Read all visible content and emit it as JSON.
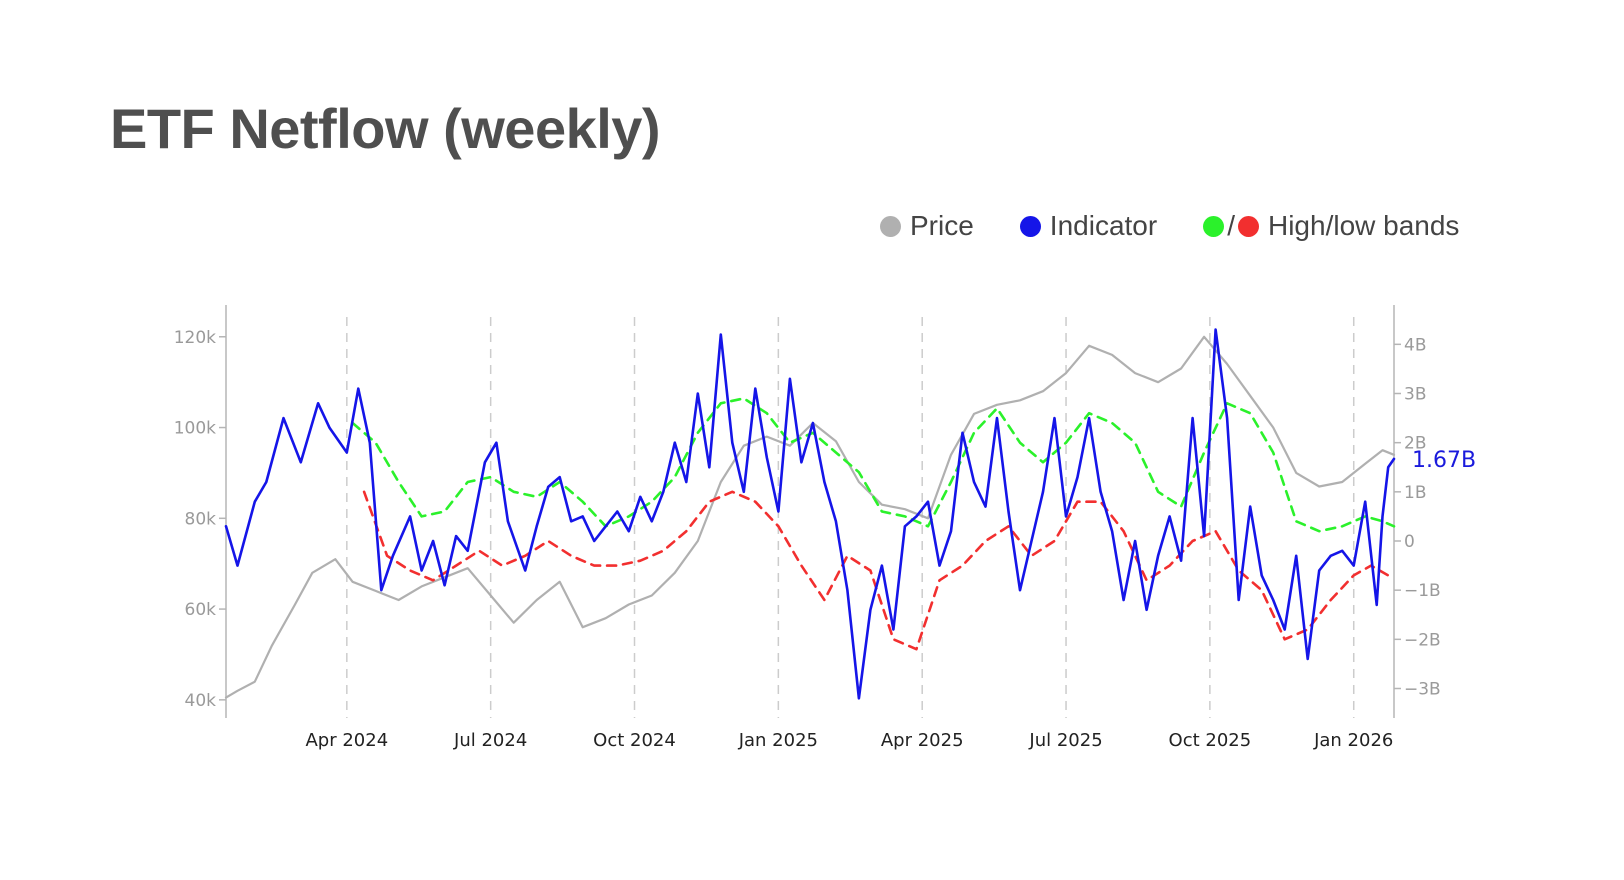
{
  "title": "ETF Netflow (weekly)",
  "legend": {
    "price": {
      "label": "Price",
      "color": "#b0b0b0"
    },
    "indicator": {
      "label": "Indicator",
      "color": "#1515e8"
    },
    "bands": {
      "label": "High/low bands",
      "separator": "/",
      "high_color": "#2bf12b",
      "low_color": "#f22f2f"
    }
  },
  "chart_data": {
    "type": "line",
    "title": "ETF Netflow (weekly)",
    "x_range": [
      2024.04,
      2026.07
    ],
    "x_ticks": [
      {
        "label": "Apr 2024",
        "x": 2024.25
      },
      {
        "label": "Jul 2024",
        "x": 2024.5
      },
      {
        "label": "Oct 2024",
        "x": 2024.75
      },
      {
        "label": "Jan 2025",
        "x": 2025.0
      },
      {
        "label": "Apr 2025",
        "x": 2025.25
      },
      {
        "label": "Jul 2025",
        "x": 2025.5
      },
      {
        "label": "Oct 2025",
        "x": 2025.75
      },
      {
        "label": "Jan 2026",
        "x": 2026.0
      }
    ],
    "y_left": {
      "label": "Price",
      "range": [
        36000,
        127000
      ],
      "ticks": [
        {
          "v": 40000,
          "label": "40k"
        },
        {
          "v": 60000,
          "label": "60k"
        },
        {
          "v": 80000,
          "label": "80k"
        },
        {
          "v": 100000,
          "label": "100k"
        },
        {
          "v": 120000,
          "label": "120k"
        }
      ]
    },
    "y_right": {
      "label": "Indicator",
      "range": [
        -3.6,
        4.8
      ],
      "ticks": [
        {
          "v": -3,
          "label": "−3B"
        },
        {
          "v": -2,
          "label": "−2B"
        },
        {
          "v": -1,
          "label": "−1B"
        },
        {
          "v": 0,
          "label": "0"
        },
        {
          "v": 1,
          "label": "1B"
        },
        {
          "v": 2,
          "label": "2B"
        },
        {
          "v": 3,
          "label": "3B"
        },
        {
          "v": 4,
          "label": "4B"
        }
      ]
    },
    "last_value_label": "1.67B",
    "last_value": 1.67,
    "series": [
      {
        "name": "Price",
        "axis": "left",
        "color": "#b0b0b0",
        "points": [
          [
            2024.04,
            40500
          ],
          [
            2024.06,
            42000
          ],
          [
            2024.09,
            44000
          ],
          [
            2024.12,
            52000
          ],
          [
            2024.16,
            61000
          ],
          [
            2024.19,
            68000
          ],
          [
            2024.23,
            71000
          ],
          [
            2024.26,
            66000
          ],
          [
            2024.3,
            64000
          ],
          [
            2024.34,
            62000
          ],
          [
            2024.38,
            65000
          ],
          [
            2024.42,
            67000
          ],
          [
            2024.46,
            69000
          ],
          [
            2024.5,
            63000
          ],
          [
            2024.54,
            57000
          ],
          [
            2024.58,
            62000
          ],
          [
            2024.62,
            66000
          ],
          [
            2024.66,
            56000
          ],
          [
            2024.7,
            58000
          ],
          [
            2024.74,
            61000
          ],
          [
            2024.78,
            63000
          ],
          [
            2024.82,
            68000
          ],
          [
            2024.86,
            75000
          ],
          [
            2024.9,
            88000
          ],
          [
            2024.94,
            96000
          ],
          [
            2024.98,
            98000
          ],
          [
            2025.02,
            96000
          ],
          [
            2025.06,
            101000
          ],
          [
            2025.1,
            97000
          ],
          [
            2025.14,
            88000
          ],
          [
            2025.18,
            83000
          ],
          [
            2025.22,
            82000
          ],
          [
            2025.26,
            80000
          ],
          [
            2025.3,
            94000
          ],
          [
            2025.34,
            103000
          ],
          [
            2025.38,
            105000
          ],
          [
            2025.42,
            106000
          ],
          [
            2025.46,
            108000
          ],
          [
            2025.5,
            112000
          ],
          [
            2025.54,
            118000
          ],
          [
            2025.58,
            116000
          ],
          [
            2025.62,
            112000
          ],
          [
            2025.66,
            110000
          ],
          [
            2025.7,
            113000
          ],
          [
            2025.74,
            120000
          ],
          [
            2025.78,
            114000
          ],
          [
            2025.82,
            107000
          ],
          [
            2025.86,
            100000
          ],
          [
            2025.9,
            90000
          ],
          [
            2025.94,
            87000
          ],
          [
            2025.98,
            88000
          ],
          [
            2026.02,
            92000
          ],
          [
            2026.05,
            95000
          ],
          [
            2026.07,
            94000
          ]
        ]
      },
      {
        "name": "Indicator",
        "axis": "right",
        "color": "#1515e8",
        "points": [
          [
            2024.04,
            0.3
          ],
          [
            2024.06,
            -0.5
          ],
          [
            2024.09,
            0.8
          ],
          [
            2024.11,
            1.2
          ],
          [
            2024.14,
            2.5
          ],
          [
            2024.17,
            1.6
          ],
          [
            2024.2,
            2.8
          ],
          [
            2024.22,
            2.3
          ],
          [
            2024.25,
            1.8
          ],
          [
            2024.27,
            3.1
          ],
          [
            2024.29,
            2.0
          ],
          [
            2024.31,
            -1.0
          ],
          [
            2024.33,
            -0.3
          ],
          [
            2024.36,
            0.5
          ],
          [
            2024.38,
            -0.6
          ],
          [
            2024.4,
            0.0
          ],
          [
            2024.42,
            -0.9
          ],
          [
            2024.44,
            0.1
          ],
          [
            2024.46,
            -0.2
          ],
          [
            2024.49,
            1.6
          ],
          [
            2024.51,
            2.0
          ],
          [
            2024.53,
            0.4
          ],
          [
            2024.56,
            -0.6
          ],
          [
            2024.58,
            0.3
          ],
          [
            2024.6,
            1.1
          ],
          [
            2024.62,
            1.3
          ],
          [
            2024.64,
            0.4
          ],
          [
            2024.66,
            0.5
          ],
          [
            2024.68,
            0.0
          ],
          [
            2024.7,
            0.3
          ],
          [
            2024.72,
            0.6
          ],
          [
            2024.74,
            0.2
          ],
          [
            2024.76,
            0.9
          ],
          [
            2024.78,
            0.4
          ],
          [
            2024.8,
            1.0
          ],
          [
            2024.82,
            2.0
          ],
          [
            2024.84,
            1.2
          ],
          [
            2024.86,
            3.0
          ],
          [
            2024.88,
            1.5
          ],
          [
            2024.9,
            4.2
          ],
          [
            2024.92,
            2.0
          ],
          [
            2024.94,
            1.0
          ],
          [
            2024.96,
            3.1
          ],
          [
            2024.98,
            1.7
          ],
          [
            2025.0,
            0.6
          ],
          [
            2025.02,
            3.3
          ],
          [
            2025.04,
            1.6
          ],
          [
            2025.06,
            2.4
          ],
          [
            2025.08,
            1.2
          ],
          [
            2025.1,
            0.4
          ],
          [
            2025.12,
            -1.0
          ],
          [
            2025.14,
            -3.2
          ],
          [
            2025.16,
            -1.4
          ],
          [
            2025.18,
            -0.5
          ],
          [
            2025.2,
            -1.8
          ],
          [
            2025.22,
            0.3
          ],
          [
            2025.24,
            0.5
          ],
          [
            2025.26,
            0.8
          ],
          [
            2025.28,
            -0.5
          ],
          [
            2025.3,
            0.2
          ],
          [
            2025.32,
            2.2
          ],
          [
            2025.34,
            1.2
          ],
          [
            2025.36,
            0.7
          ],
          [
            2025.38,
            2.5
          ],
          [
            2025.4,
            0.6
          ],
          [
            2025.42,
            -1.0
          ],
          [
            2025.44,
            0.0
          ],
          [
            2025.46,
            1.0
          ],
          [
            2025.48,
            2.5
          ],
          [
            2025.5,
            0.5
          ],
          [
            2025.52,
            1.3
          ],
          [
            2025.54,
            2.5
          ],
          [
            2025.56,
            1.0
          ],
          [
            2025.58,
            0.2
          ],
          [
            2025.6,
            -1.2
          ],
          [
            2025.62,
            0.0
          ],
          [
            2025.64,
            -1.4
          ],
          [
            2025.66,
            -0.3
          ],
          [
            2025.68,
            0.5
          ],
          [
            2025.7,
            -0.4
          ],
          [
            2025.72,
            2.5
          ],
          [
            2025.74,
            0.1
          ],
          [
            2025.76,
            4.3
          ],
          [
            2025.78,
            2.5
          ],
          [
            2025.8,
            -1.2
          ],
          [
            2025.82,
            0.7
          ],
          [
            2025.84,
            -0.7
          ],
          [
            2025.86,
            -1.2
          ],
          [
            2025.88,
            -1.8
          ],
          [
            2025.9,
            -0.3
          ],
          [
            2025.92,
            -2.4
          ],
          [
            2025.94,
            -0.6
          ],
          [
            2025.96,
            -0.3
          ],
          [
            2025.98,
            -0.2
          ],
          [
            2026.0,
            -0.5
          ],
          [
            2026.02,
            0.8
          ],
          [
            2026.04,
            -1.3
          ],
          [
            2026.05,
            0.5
          ],
          [
            2026.06,
            1.5
          ],
          [
            2026.07,
            1.67
          ]
        ]
      },
      {
        "name": "High band",
        "axis": "right",
        "color": "#2bf12b",
        "style": "dashed",
        "points": [
          [
            2024.26,
            2.4
          ],
          [
            2024.3,
            2.0
          ],
          [
            2024.34,
            1.2
          ],
          [
            2024.38,
            0.5
          ],
          [
            2024.42,
            0.6
          ],
          [
            2024.46,
            1.2
          ],
          [
            2024.5,
            1.3
          ],
          [
            2024.54,
            1.0
          ],
          [
            2024.58,
            0.9
          ],
          [
            2024.62,
            1.2
          ],
          [
            2024.66,
            0.8
          ],
          [
            2024.7,
            0.3
          ],
          [
            2024.74,
            0.5
          ],
          [
            2024.78,
            0.8
          ],
          [
            2024.82,
            1.3
          ],
          [
            2024.86,
            2.2
          ],
          [
            2024.9,
            2.8
          ],
          [
            2024.94,
            2.9
          ],
          [
            2024.98,
            2.6
          ],
          [
            2025.02,
            2.0
          ],
          [
            2025.06,
            2.2
          ],
          [
            2025.1,
            1.8
          ],
          [
            2025.14,
            1.4
          ],
          [
            2025.18,
            0.6
          ],
          [
            2025.22,
            0.5
          ],
          [
            2025.26,
            0.3
          ],
          [
            2025.3,
            1.2
          ],
          [
            2025.34,
            2.2
          ],
          [
            2025.38,
            2.7
          ],
          [
            2025.42,
            2.0
          ],
          [
            2025.46,
            1.6
          ],
          [
            2025.5,
            2.0
          ],
          [
            2025.54,
            2.6
          ],
          [
            2025.58,
            2.4
          ],
          [
            2025.62,
            2.0
          ],
          [
            2025.66,
            1.0
          ],
          [
            2025.7,
            0.7
          ],
          [
            2025.74,
            1.8
          ],
          [
            2025.78,
            2.8
          ],
          [
            2025.82,
            2.6
          ],
          [
            2025.86,
            1.8
          ],
          [
            2025.9,
            0.4
          ],
          [
            2025.94,
            0.2
          ],
          [
            2025.98,
            0.3
          ],
          [
            2026.02,
            0.5
          ],
          [
            2026.05,
            0.4
          ],
          [
            2026.07,
            0.3
          ]
        ]
      },
      {
        "name": "Low band",
        "axis": "right",
        "color": "#f22f2f",
        "style": "dashed",
        "points": [
          [
            2024.28,
            1.0
          ],
          [
            2024.32,
            -0.3
          ],
          [
            2024.36,
            -0.6
          ],
          [
            2024.4,
            -0.8
          ],
          [
            2024.44,
            -0.5
          ],
          [
            2024.48,
            -0.2
          ],
          [
            2024.52,
            -0.5
          ],
          [
            2024.56,
            -0.3
          ],
          [
            2024.6,
            0.0
          ],
          [
            2024.64,
            -0.3
          ],
          [
            2024.68,
            -0.5
          ],
          [
            2024.72,
            -0.5
          ],
          [
            2024.76,
            -0.4
          ],
          [
            2024.8,
            -0.2
          ],
          [
            2024.84,
            0.2
          ],
          [
            2024.88,
            0.8
          ],
          [
            2024.92,
            1.0
          ],
          [
            2024.96,
            0.8
          ],
          [
            2025.0,
            0.3
          ],
          [
            2025.04,
            -0.5
          ],
          [
            2025.08,
            -1.2
          ],
          [
            2025.12,
            -0.3
          ],
          [
            2025.16,
            -0.6
          ],
          [
            2025.2,
            -2.0
          ],
          [
            2025.24,
            -2.2
          ],
          [
            2025.28,
            -0.8
          ],
          [
            2025.32,
            -0.5
          ],
          [
            2025.36,
            0.0
          ],
          [
            2025.4,
            0.3
          ],
          [
            2025.44,
            -0.3
          ],
          [
            2025.48,
            0.0
          ],
          [
            2025.52,
            0.8
          ],
          [
            2025.56,
            0.8
          ],
          [
            2025.6,
            0.2
          ],
          [
            2025.64,
            -0.8
          ],
          [
            2025.68,
            -0.5
          ],
          [
            2025.72,
            0.0
          ],
          [
            2025.76,
            0.2
          ],
          [
            2025.8,
            -0.6
          ],
          [
            2025.84,
            -1.0
          ],
          [
            2025.88,
            -2.0
          ],
          [
            2025.92,
            -1.8
          ],
          [
            2025.96,
            -1.2
          ],
          [
            2026.0,
            -0.7
          ],
          [
            2026.03,
            -0.5
          ],
          [
            2026.06,
            -0.7
          ]
        ]
      }
    ]
  }
}
